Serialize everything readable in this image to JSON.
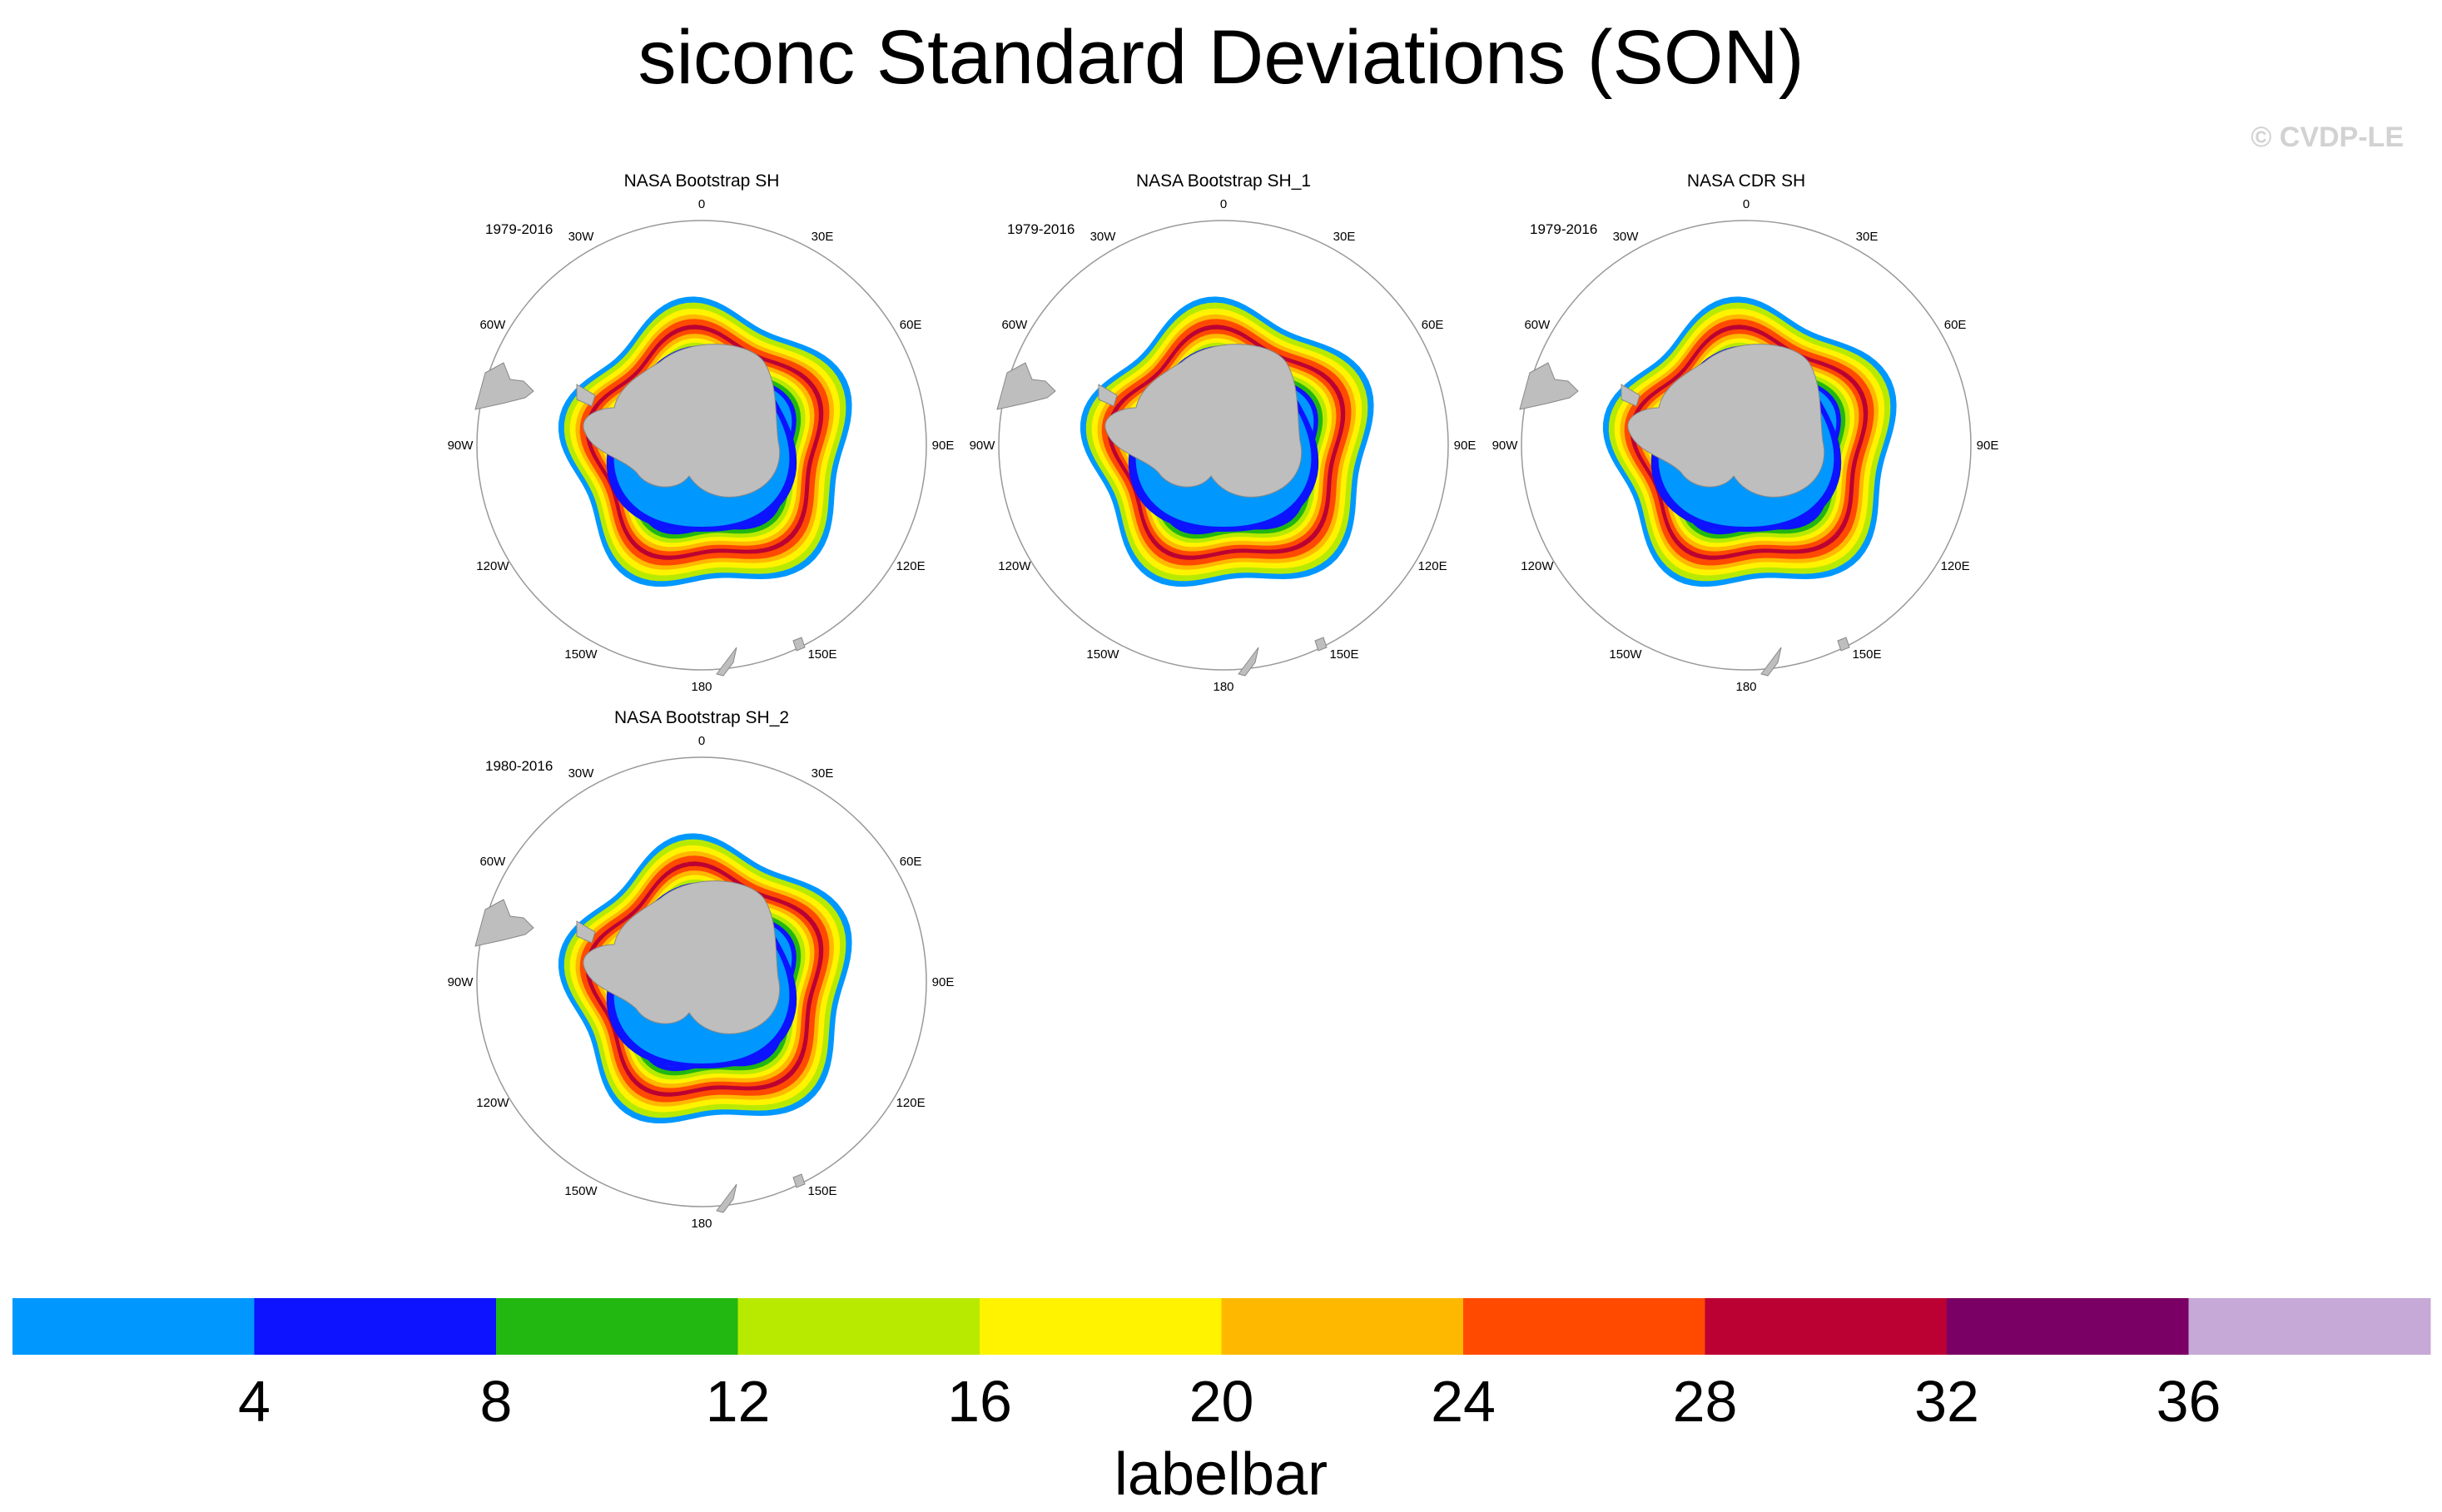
{
  "title": "siconc Standard Deviations (SON)",
  "credit": "© CVDP-LE",
  "chart_data": {
    "type": "heatmap",
    "projection": "south polar stereographic",
    "variable": "siconc",
    "statistic": "standard deviation",
    "season": "SON",
    "panels": [
      {
        "title": "NASA Bootstrap SH",
        "period": "1979-2016"
      },
      {
        "title": "NASA Bootstrap SH_1",
        "period": "1979-2016"
      },
      {
        "title": "NASA CDR SH",
        "period": "1979-2016"
      },
      {
        "title": "NASA Bootstrap SH_2",
        "period": "1980-2016"
      }
    ],
    "longitude_labels": [
      "0",
      "30E",
      "60E",
      "90E",
      "120E",
      "150E",
      "180",
      "150W",
      "120W",
      "90W",
      "60W",
      "30W"
    ],
    "labelbar": {
      "title": "labelbar",
      "levels": [
        4,
        8,
        12,
        16,
        20,
        24,
        28,
        32,
        36
      ],
      "colors": [
        "#0098FF",
        "#0D12FF",
        "#22B811",
        "#B8EA00",
        "#FFF300",
        "#FFB800",
        "#FF4A00",
        "#BB0033",
        "#7B0065",
        "#C6A9D6"
      ]
    },
    "land_color": "#BEBEBE"
  }
}
